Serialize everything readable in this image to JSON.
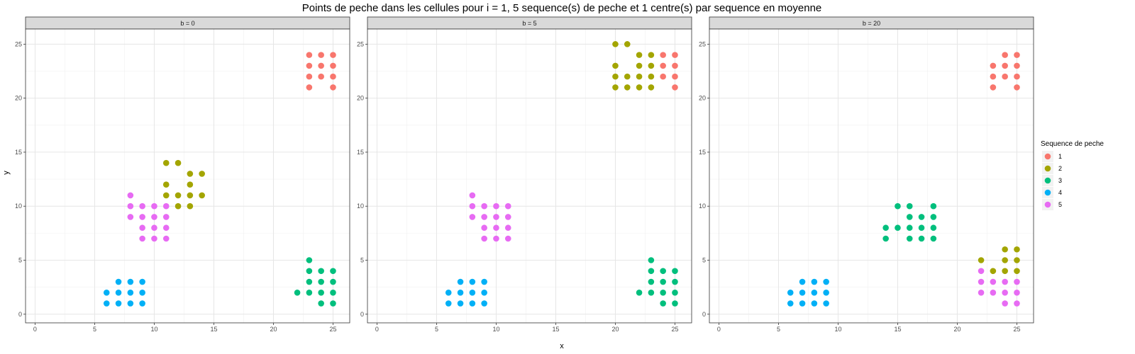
{
  "chart_data": {
    "type": "scatter",
    "title": "Points de peche dans les cellules pour i = 1, 5 sequence(s) de peche et 1 centre(s) par sequence en moyenne",
    "xlabel": "x",
    "ylabel": "y",
    "xlim": [
      -0.8,
      26.4
    ],
    "ylim": [
      -0.8,
      26.4
    ],
    "xticks": [
      0,
      5,
      10,
      15,
      20,
      25
    ],
    "yticks": [
      0,
      5,
      10,
      15,
      20,
      25
    ],
    "grid": true,
    "legend": {
      "title": "Sequence de peche",
      "position": "right",
      "entries": [
        {
          "label": "1",
          "color": "#F8766D"
        },
        {
          "label": "2",
          "color": "#A3A500"
        },
        {
          "label": "3",
          "color": "#00BF7D"
        },
        {
          "label": "4",
          "color": "#00B0F6"
        },
        {
          "label": "5",
          "color": "#E76BF3"
        }
      ]
    },
    "panels": [
      {
        "label": "b = 0",
        "series": [
          {
            "name": "1",
            "points": [
              [
                23,
                24
              ],
              [
                24,
                24
              ],
              [
                25,
                24
              ],
              [
                23,
                23
              ],
              [
                24,
                23
              ],
              [
                25,
                23
              ],
              [
                23,
                22
              ],
              [
                24,
                22
              ],
              [
                25,
                22
              ],
              [
                23,
                21
              ],
              [
                25,
                21
              ]
            ]
          },
          {
            "name": "2",
            "points": [
              [
                11,
                14
              ],
              [
                12,
                14
              ],
              [
                13,
                13
              ],
              [
                14,
                13
              ],
              [
                11,
                12
              ],
              [
                13,
                12
              ],
              [
                11,
                11
              ],
              [
                12,
                11
              ],
              [
                13,
                11
              ],
              [
                14,
                11
              ],
              [
                12,
                10
              ],
              [
                13,
                10
              ]
            ]
          },
          {
            "name": "3",
            "points": [
              [
                23,
                5
              ],
              [
                23,
                4
              ],
              [
                24,
                4
              ],
              [
                25,
                4
              ],
              [
                23,
                3
              ],
              [
                24,
                3
              ],
              [
                25,
                3
              ],
              [
                22,
                2
              ],
              [
                23,
                2
              ],
              [
                24,
                2
              ],
              [
                25,
                2
              ],
              [
                24,
                1
              ],
              [
                25,
                1
              ]
            ]
          },
          {
            "name": "4",
            "points": [
              [
                7,
                3
              ],
              [
                8,
                3
              ],
              [
                9,
                3
              ],
              [
                6,
                2
              ],
              [
                7,
                2
              ],
              [
                8,
                2
              ],
              [
                9,
                2
              ],
              [
                6,
                1
              ],
              [
                7,
                1
              ],
              [
                8,
                1
              ],
              [
                9,
                1
              ]
            ]
          },
          {
            "name": "5",
            "points": [
              [
                8,
                11
              ],
              [
                8,
                10
              ],
              [
                9,
                10
              ],
              [
                10,
                10
              ],
              [
                11,
                10
              ],
              [
                8,
                9
              ],
              [
                9,
                9
              ],
              [
                10,
                9
              ],
              [
                11,
                9
              ],
              [
                9,
                8
              ],
              [
                10,
                8
              ],
              [
                11,
                8
              ],
              [
                9,
                7
              ],
              [
                10,
                7
              ],
              [
                11,
                7
              ]
            ]
          }
        ]
      },
      {
        "label": "b = 5",
        "series": [
          {
            "name": "1",
            "points": [
              [
                24,
                24
              ],
              [
                25,
                24
              ],
              [
                24,
                23
              ],
              [
                25,
                23
              ],
              [
                24,
                22
              ],
              [
                25,
                22
              ],
              [
                25,
                21
              ]
            ]
          },
          {
            "name": "2",
            "points": [
              [
                20,
                25
              ],
              [
                21,
                25
              ],
              [
                22,
                24
              ],
              [
                23,
                24
              ],
              [
                20,
                23
              ],
              [
                22,
                23
              ],
              [
                23,
                23
              ],
              [
                20,
                22
              ],
              [
                21,
                22
              ],
              [
                22,
                22
              ],
              [
                23,
                22
              ],
              [
                20,
                21
              ],
              [
                21,
                21
              ],
              [
                22,
                21
              ],
              [
                23,
                21
              ]
            ]
          },
          {
            "name": "3",
            "points": [
              [
                23,
                5
              ],
              [
                23,
                4
              ],
              [
                24,
                4
              ],
              [
                25,
                4
              ],
              [
                23,
                3
              ],
              [
                24,
                3
              ],
              [
                25,
                3
              ],
              [
                22,
                2
              ],
              [
                23,
                2
              ],
              [
                24,
                2
              ],
              [
                25,
                2
              ],
              [
                24,
                1
              ],
              [
                25,
                1
              ]
            ]
          },
          {
            "name": "4",
            "points": [
              [
                7,
                3
              ],
              [
                8,
                3
              ],
              [
                9,
                3
              ],
              [
                6,
                2
              ],
              [
                7,
                2
              ],
              [
                8,
                2
              ],
              [
                9,
                2
              ],
              [
                6,
                1
              ],
              [
                7,
                1
              ],
              [
                8,
                1
              ],
              [
                9,
                1
              ]
            ]
          },
          {
            "name": "5",
            "points": [
              [
                8,
                11
              ],
              [
                8,
                10
              ],
              [
                9,
                10
              ],
              [
                10,
                10
              ],
              [
                11,
                10
              ],
              [
                8,
                9
              ],
              [
                9,
                9
              ],
              [
                10,
                9
              ],
              [
                11,
                9
              ],
              [
                9,
                8
              ],
              [
                10,
                8
              ],
              [
                11,
                8
              ],
              [
                9,
                7
              ],
              [
                10,
                7
              ],
              [
                11,
                7
              ]
            ]
          }
        ]
      },
      {
        "label": "b = 20",
        "series": [
          {
            "name": "1",
            "points": [
              [
                24,
                24
              ],
              [
                25,
                24
              ],
              [
                23,
                23
              ],
              [
                24,
                23
              ],
              [
                25,
                23
              ],
              [
                23,
                22
              ],
              [
                24,
                22
              ],
              [
                25,
                22
              ],
              [
                23,
                21
              ],
              [
                25,
                21
              ]
            ]
          },
          {
            "name": "2",
            "points": [
              [
                24,
                6
              ],
              [
                25,
                6
              ],
              [
                22,
                5
              ],
              [
                24,
                5
              ],
              [
                25,
                5
              ],
              [
                23,
                4
              ],
              [
                24,
                4
              ],
              [
                25,
                4
              ]
            ]
          },
          {
            "name": "3",
            "points": [
              [
                15,
                10
              ],
              [
                16,
                10
              ],
              [
                18,
                10
              ],
              [
                16,
                9
              ],
              [
                17,
                9
              ],
              [
                18,
                9
              ],
              [
                14,
                8
              ],
              [
                15,
                8
              ],
              [
                16,
                8
              ],
              [
                17,
                8
              ],
              [
                18,
                8
              ],
              [
                14,
                7
              ],
              [
                16,
                7
              ],
              [
                17,
                7
              ],
              [
                18,
                7
              ]
            ]
          },
          {
            "name": "4",
            "points": [
              [
                7,
                3
              ],
              [
                8,
                3
              ],
              [
                9,
                3
              ],
              [
                6,
                2
              ],
              [
                7,
                2
              ],
              [
                8,
                2
              ],
              [
                9,
                2
              ],
              [
                6,
                1
              ],
              [
                7,
                1
              ],
              [
                8,
                1
              ],
              [
                9,
                1
              ]
            ]
          },
          {
            "name": "5",
            "points": [
              [
                22,
                4
              ],
              [
                22,
                3
              ],
              [
                23,
                3
              ],
              [
                24,
                3
              ],
              [
                25,
                3
              ],
              [
                22,
                2
              ],
              [
                23,
                2
              ],
              [
                24,
                2
              ],
              [
                25,
                2
              ],
              [
                24,
                1
              ],
              [
                25,
                1
              ]
            ]
          }
        ]
      }
    ]
  }
}
